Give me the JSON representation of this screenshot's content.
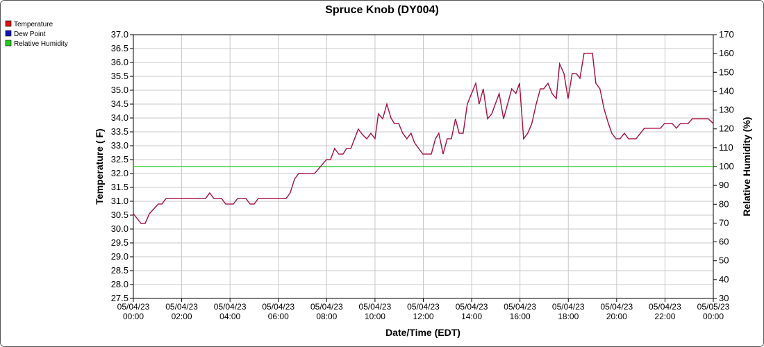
{
  "chart_data": {
    "type": "line",
    "title": "Spruce Knob (DY004)",
    "x_label": "Date/Time (EDT)",
    "y_label": "Temperature ( F)",
    "y2_label": "Relative Humidity (%)",
    "grid": true,
    "legend": "top-left",
    "x": [
      0,
      0.32,
      0.49,
      0.66,
      1.03,
      1.18,
      1.35,
      2.99,
      3.16,
      3.33,
      3.65,
      3.82,
      4.14,
      4.31,
      4.66,
      4.83,
      5.0,
      5.17,
      6.32,
      6.49,
      6.67,
      6.84,
      7.5,
      7.99,
      8.16,
      8.33,
      8.5,
      8.68,
      8.82,
      9.0,
      9.31,
      9.48,
      9.66,
      9.83,
      10.0,
      10.14,
      10.32,
      10.49,
      10.66,
      10.8,
      10.98,
      11.15,
      11.32,
      11.49,
      11.64,
      11.98,
      12.33,
      12.5,
      12.64,
      12.82,
      12.99,
      13.16,
      13.33,
      13.48,
      13.65,
      13.82,
      14.17,
      14.31,
      14.48,
      14.66,
      14.83,
      15.14,
      15.32,
      15.66,
      15.83,
      15.98,
      16.15,
      16.32,
      16.49,
      16.67,
      16.84,
      16.98,
      17.16,
      17.33,
      17.5,
      17.64,
      17.82,
      17.99,
      18.16,
      18.33,
      18.48,
      18.65,
      19.0,
      19.14,
      19.31,
      19.48,
      19.66,
      19.8,
      19.97,
      20.14,
      20.32,
      20.49,
      20.8,
      21.15,
      21.81,
      21.98,
      22.3,
      22.47,
      22.64,
      22.96,
      23.13,
      23.79,
      24.0
    ],
    "series": [
      {
        "name": "Temperature",
        "color": "#dd1111",
        "values": [
          30.55,
          30.2,
          30.2,
          30.55,
          30.9,
          30.9,
          31.1,
          31.1,
          31.3,
          31.1,
          31.1,
          30.9,
          30.9,
          31.1,
          31.1,
          30.9,
          30.9,
          31.1,
          31.1,
          31.3,
          31.8,
          32.0,
          32.0,
          32.5,
          32.5,
          32.9,
          32.7,
          32.7,
          32.9,
          32.9,
          33.6,
          33.4,
          33.25,
          33.45,
          33.25,
          34.15,
          33.97,
          34.5,
          34.0,
          33.8,
          33.8,
          33.45,
          33.25,
          33.45,
          33.1,
          32.7,
          32.7,
          33.25,
          33.45,
          32.7,
          33.25,
          33.25,
          33.97,
          33.45,
          33.45,
          34.5,
          35.25,
          34.5,
          35.05,
          33.97,
          34.15,
          34.88,
          33.97,
          35.05,
          34.88,
          35.25,
          33.25,
          33.45,
          33.8,
          34.5,
          35.05,
          35.05,
          35.25,
          34.88,
          34.7,
          35.95,
          35.6,
          34.7,
          35.6,
          35.6,
          35.43,
          36.33,
          36.33,
          35.25,
          35.05,
          34.33,
          33.8,
          33.45,
          33.25,
          33.25,
          33.45,
          33.25,
          33.25,
          33.63,
          33.63,
          33.8,
          33.8,
          33.63,
          33.8,
          33.8,
          33.97,
          33.97,
          33.8
        ]
      },
      {
        "name": "Dew Point",
        "color": "#1010c0",
        "values": [
          30.55,
          30.2,
          30.2,
          30.55,
          30.9,
          30.9,
          31.1,
          31.1,
          31.3,
          31.1,
          31.1,
          30.9,
          30.9,
          31.1,
          31.1,
          30.9,
          30.9,
          31.1,
          31.1,
          31.3,
          31.8,
          32.0,
          32.0,
          32.5,
          32.5,
          32.9,
          32.7,
          32.7,
          32.9,
          32.9,
          33.6,
          33.4,
          33.25,
          33.45,
          33.25,
          34.15,
          33.97,
          34.5,
          34.0,
          33.8,
          33.8,
          33.45,
          33.25,
          33.45,
          33.1,
          32.7,
          32.7,
          33.25,
          33.45,
          32.7,
          33.25,
          33.25,
          33.97,
          33.45,
          33.45,
          34.5,
          35.25,
          34.5,
          35.05,
          33.97,
          34.15,
          34.88,
          33.97,
          35.05,
          34.88,
          35.25,
          33.25,
          33.45,
          33.8,
          34.5,
          35.05,
          35.05,
          35.25,
          34.88,
          34.7,
          35.95,
          35.6,
          34.7,
          35.6,
          35.6,
          35.43,
          36.33,
          36.33,
          35.25,
          35.05,
          34.33,
          33.8,
          33.45,
          33.25,
          33.25,
          33.45,
          33.25,
          33.25,
          33.63,
          33.63,
          33.8,
          33.8,
          33.63,
          33.8,
          33.8,
          33.97,
          33.97,
          33.8
        ]
      },
      {
        "name": "Relative Humidity",
        "color": "#22cc22",
        "axis": "y2",
        "values": [
          100,
          100,
          100,
          100,
          100,
          100,
          100,
          100,
          100,
          100,
          100,
          100,
          100,
          100,
          100,
          100,
          100,
          100,
          100,
          100,
          100,
          100,
          100,
          100,
          100,
          100,
          100,
          100,
          100,
          100,
          100,
          100,
          100,
          100,
          100,
          100,
          100,
          100,
          100,
          100,
          100,
          100,
          100,
          100,
          100,
          100,
          100,
          100,
          100,
          100,
          100,
          100,
          100,
          100,
          100,
          100,
          100,
          100,
          100,
          100,
          100,
          100,
          100,
          100,
          100,
          100,
          100,
          100,
          100,
          100,
          100,
          100,
          100,
          100,
          100,
          100,
          100,
          100,
          100,
          100,
          100,
          100,
          100,
          100,
          100,
          100,
          100,
          100,
          100,
          100,
          100,
          100,
          100,
          100,
          100,
          100,
          100,
          100,
          100,
          100,
          100,
          100,
          100
        ]
      }
    ],
    "xlim": [
      0,
      24
    ],
    "xticks": [
      {
        "value": 0,
        "label": "05/04/23\n00:00"
      },
      {
        "value": 2,
        "label": "05/04/23\n02:00"
      },
      {
        "value": 4,
        "label": "05/04/23\n04:00"
      },
      {
        "value": 6,
        "label": "05/04/23\n06:00"
      },
      {
        "value": 8,
        "label": "05/04/23\n08:00"
      },
      {
        "value": 10,
        "label": "05/04/23\n10:00"
      },
      {
        "value": 12,
        "label": "05/04/23\n12:00"
      },
      {
        "value": 14,
        "label": "05/04/23\n14:00"
      },
      {
        "value": 16,
        "label": "05/04/23\n16:00"
      },
      {
        "value": 18,
        "label": "05/04/23\n18:00"
      },
      {
        "value": 20,
        "label": "05/04/23\n20:00"
      },
      {
        "value": 22,
        "label": "05/04/23\n22:00"
      },
      {
        "value": 24,
        "label": "05/05/23\n00:00"
      }
    ],
    "ylim": [
      27.5,
      37.0
    ],
    "yticks": [
      27.5,
      {
        "value": 28,
        "label": "28.0"
      },
      28.5,
      {
        "value": 29,
        "label": "29.0"
      },
      29.5,
      {
        "value": 30,
        "label": "30.0"
      },
      30.5,
      {
        "value": 31,
        "label": "31.0"
      },
      31.5,
      {
        "value": 32,
        "label": "32.0"
      },
      32.5,
      {
        "value": 33,
        "label": "33.0"
      },
      33.5,
      {
        "value": 34,
        "label": "34.0"
      },
      34.5,
      {
        "value": 35,
        "label": "35.0"
      },
      35.5,
      {
        "value": 36,
        "label": "36.0"
      },
      36.5,
      {
        "value": 37,
        "label": "37.0"
      }
    ],
    "y2lim": [
      30,
      170
    ],
    "y2ticks": [
      30,
      40,
      50,
      60,
      70,
      80,
      90,
      100,
      110,
      120,
      130,
      140,
      150,
      160,
      170
    ]
  }
}
